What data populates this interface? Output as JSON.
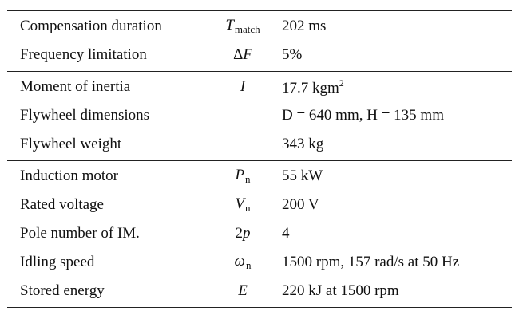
{
  "table": {
    "groups": [
      {
        "rows": [
          {
            "parameter": "Compensation duration",
            "symbol": "T",
            "symbol_sub": "match",
            "value": "202 ms"
          },
          {
            "parameter": "Frequency limitation",
            "symbol_prefix": "Δ",
            "symbol": "F",
            "value": "5%"
          }
        ]
      },
      {
        "rows": [
          {
            "parameter": "Moment of inertia",
            "symbol": "I",
            "value": "17.7 kgm",
            "value_sup": "2"
          },
          {
            "parameter": "Flywheel dimensions",
            "symbol": "",
            "value": "D = 640 mm, H = 135  mm"
          },
          {
            "parameter": "Flywheel weight",
            "symbol": "",
            "value": "343 kg"
          }
        ]
      },
      {
        "rows": [
          {
            "parameter": "Induction motor",
            "symbol": "P",
            "symbol_sub": "n",
            "value": "55 kW"
          },
          {
            "parameter": "Rated voltage",
            "symbol": "V",
            "symbol_sub": "n",
            "value": "200 V"
          },
          {
            "parameter": "Pole number of IM.",
            "symbol_prefix": "2",
            "symbol": "p",
            "value": "4"
          },
          {
            "parameter": "Idling speed",
            "symbol": "ω",
            "symbol_sub": "n",
            "value": "1500 rpm, 157 rad/s at 50 Hz"
          },
          {
            "parameter": "Stored energy",
            "symbol": "E",
            "value": "220 kJ at 1500 rpm"
          }
        ]
      }
    ]
  }
}
